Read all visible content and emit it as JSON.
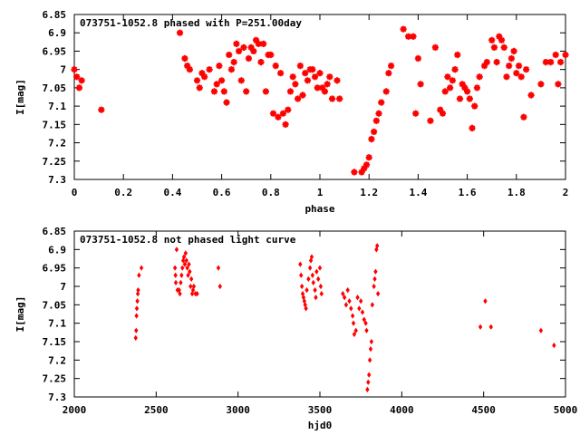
{
  "chart_data": [
    {
      "type": "scatter",
      "title": "073751-1052.8 phased with P=251.00day",
      "xlabel": "phase",
      "ylabel": "I[mag]",
      "xlim": [
        0,
        2
      ],
      "ylim": [
        6.85,
        7.3
      ],
      "y_inverted": true,
      "xticks": [
        "0",
        "0.2",
        "0.4",
        "0.6",
        "0.8",
        "1",
        "1.2",
        "1.4",
        "1.6",
        "1.8",
        "2"
      ],
      "yticks": [
        "6.85",
        "6.9",
        "6.95",
        "7",
        "7.05",
        "7.1",
        "7.15",
        "7.2",
        "7.25",
        "7.3"
      ],
      "marker": "star",
      "color": "#ff0000",
      "series": [
        {
          "points": [
            [
              0.0,
              7.0
            ],
            [
              0.01,
              7.02
            ],
            [
              0.02,
              7.05
            ],
            [
              0.03,
              7.03
            ],
            [
              0.11,
              7.11
            ],
            [
              0.43,
              6.9
            ],
            [
              0.45,
              6.97
            ],
            [
              0.46,
              6.99
            ],
            [
              0.47,
              7.0
            ],
            [
              0.5,
              7.03
            ],
            [
              0.51,
              7.05
            ],
            [
              0.52,
              7.01
            ],
            [
              0.53,
              7.02
            ],
            [
              0.55,
              7.0
            ],
            [
              0.57,
              7.06
            ],
            [
              0.58,
              7.04
            ],
            [
              0.59,
              6.99
            ],
            [
              0.6,
              7.03
            ],
            [
              0.61,
              7.06
            ],
            [
              0.62,
              7.09
            ],
            [
              0.63,
              6.96
            ],
            [
              0.64,
              7.0
            ],
            [
              0.65,
              6.98
            ],
            [
              0.66,
              6.93
            ],
            [
              0.67,
              6.95
            ],
            [
              0.68,
              7.03
            ],
            [
              0.69,
              6.94
            ],
            [
              0.7,
              7.06
            ],
            [
              0.71,
              6.97
            ],
            [
              0.72,
              6.94
            ],
            [
              0.73,
              6.95
            ],
            [
              0.74,
              6.92
            ],
            [
              0.75,
              6.93
            ],
            [
              0.76,
              6.98
            ],
            [
              0.77,
              6.93
            ],
            [
              0.78,
              7.06
            ],
            [
              0.79,
              6.96
            ],
            [
              0.8,
              6.96
            ],
            [
              0.81,
              7.12
            ],
            [
              0.82,
              6.99
            ],
            [
              0.83,
              7.13
            ],
            [
              0.84,
              7.01
            ],
            [
              0.85,
              7.12
            ],
            [
              0.86,
              7.15
            ],
            [
              0.87,
              7.11
            ],
            [
              0.88,
              7.06
            ],
            [
              0.89,
              7.02
            ],
            [
              0.9,
              7.04
            ],
            [
              0.91,
              7.08
            ],
            [
              0.92,
              6.99
            ],
            [
              0.93,
              7.07
            ],
            [
              0.94,
              7.01
            ],
            [
              0.95,
              7.03
            ],
            [
              0.96,
              7.0
            ],
            [
              0.97,
              7.0
            ],
            [
              0.98,
              7.02
            ],
            [
              0.99,
              7.05
            ],
            [
              1.0,
              7.01
            ],
            [
              1.01,
              7.05
            ],
            [
              1.02,
              7.06
            ],
            [
              1.03,
              7.04
            ],
            [
              1.04,
              7.02
            ],
            [
              1.05,
              7.08
            ],
            [
              1.07,
              7.03
            ],
            [
              1.08,
              7.08
            ],
            [
              1.14,
              7.28
            ],
            [
              1.17,
              7.28
            ],
            [
              1.18,
              7.27
            ],
            [
              1.19,
              7.26
            ],
            [
              1.2,
              7.24
            ],
            [
              1.21,
              7.19
            ],
            [
              1.22,
              7.17
            ],
            [
              1.23,
              7.14
            ],
            [
              1.24,
              7.12
            ],
            [
              1.25,
              7.09
            ],
            [
              1.27,
              7.06
            ],
            [
              1.28,
              7.01
            ],
            [
              1.29,
              6.99
            ],
            [
              1.34,
              6.89
            ],
            [
              1.36,
              6.91
            ],
            [
              1.38,
              6.91
            ],
            [
              1.39,
              7.12
            ],
            [
              1.4,
              6.97
            ],
            [
              1.41,
              7.04
            ],
            [
              1.45,
              7.14
            ],
            [
              1.47,
              6.94
            ],
            [
              1.49,
              7.11
            ],
            [
              1.5,
              7.12
            ],
            [
              1.51,
              7.06
            ],
            [
              1.52,
              7.02
            ],
            [
              1.53,
              7.05
            ],
            [
              1.54,
              7.03
            ],
            [
              1.55,
              7.0
            ],
            [
              1.56,
              6.96
            ],
            [
              1.57,
              7.08
            ],
            [
              1.58,
              7.04
            ],
            [
              1.59,
              7.05
            ],
            [
              1.6,
              7.06
            ],
            [
              1.61,
              7.08
            ],
            [
              1.62,
              7.16
            ],
            [
              1.63,
              7.1
            ],
            [
              1.64,
              7.05
            ],
            [
              1.65,
              7.02
            ],
            [
              1.67,
              6.99
            ],
            [
              1.68,
              6.98
            ],
            [
              1.7,
              6.92
            ],
            [
              1.71,
              6.94
            ],
            [
              1.72,
              6.98
            ],
            [
              1.73,
              6.91
            ],
            [
              1.74,
              6.92
            ],
            [
              1.75,
              6.94
            ],
            [
              1.76,
              7.02
            ],
            [
              1.77,
              6.99
            ],
            [
              1.78,
              6.97
            ],
            [
              1.79,
              6.95
            ],
            [
              1.8,
              7.01
            ],
            [
              1.81,
              6.99
            ],
            [
              1.82,
              7.02
            ],
            [
              1.83,
              7.13
            ],
            [
              1.84,
              7.0
            ],
            [
              1.86,
              7.07
            ],
            [
              1.9,
              7.04
            ],
            [
              1.92,
              6.98
            ],
            [
              1.94,
              6.98
            ],
            [
              1.96,
              6.96
            ],
            [
              1.97,
              7.04
            ],
            [
              1.98,
              6.98
            ],
            [
              2.0,
              6.96
            ]
          ]
        }
      ]
    },
    {
      "type": "scatter",
      "title": "073751-1052.8 not phased light curve",
      "xlabel": "hjd0",
      "ylabel": "I[mag]",
      "xlim": [
        2000,
        5000
      ],
      "ylim": [
        6.85,
        7.3
      ],
      "y_inverted": true,
      "xticks": [
        "2000",
        "2500",
        "3000",
        "3500",
        "4000",
        "4500",
        "5000"
      ],
      "yticks": [
        "6.85",
        "6.9",
        "6.95",
        "7",
        "7.05",
        "7.1",
        "7.15",
        "7.2",
        "7.25",
        "7.3"
      ],
      "marker": "diamond",
      "color": "#ff0000",
      "series": [
        {
          "points": [
            [
              2375,
              7.14
            ],
            [
              2378,
              7.12
            ],
            [
              2380,
              7.08
            ],
            [
              2382,
              7.06
            ],
            [
              2385,
              7.04
            ],
            [
              2388,
              7.02
            ],
            [
              2390,
              7.01
            ],
            [
              2395,
              6.97
            ],
            [
              2410,
              6.95
            ],
            [
              2615,
              6.95
            ],
            [
              2618,
              6.97
            ],
            [
              2620,
              6.99
            ],
            [
              2625,
              6.9
            ],
            [
              2630,
              7.01
            ],
            [
              2640,
              7.01
            ],
            [
              2645,
              7.02
            ],
            [
              2650,
              6.99
            ],
            [
              2655,
              6.97
            ],
            [
              2660,
              6.95
            ],
            [
              2665,
              6.93
            ],
            [
              2670,
              6.92
            ],
            [
              2675,
              6.94
            ],
            [
              2680,
              6.91
            ],
            [
              2685,
              6.93
            ],
            [
              2690,
              6.95
            ],
            [
              2695,
              6.97
            ],
            [
              2700,
              6.94
            ],
            [
              2705,
              6.96
            ],
            [
              2710,
              7.0
            ],
            [
              2715,
              6.98
            ],
            [
              2720,
              7.02
            ],
            [
              2725,
              7.01
            ],
            [
              2730,
              7.0
            ],
            [
              2740,
              7.02
            ],
            [
              2750,
              7.02
            ],
            [
              2880,
              6.95
            ],
            [
              2890,
              7.0
            ],
            [
              3380,
              6.94
            ],
            [
              3385,
              6.97
            ],
            [
              3390,
              7.0
            ],
            [
              3395,
              7.02
            ],
            [
              3400,
              7.03
            ],
            [
              3405,
              7.04
            ],
            [
              3410,
              7.05
            ],
            [
              3415,
              7.06
            ],
            [
              3420,
              7.01
            ],
            [
              3430,
              6.98
            ],
            [
              3440,
              6.95
            ],
            [
              3445,
              6.93
            ],
            [
              3450,
              6.92
            ],
            [
              3455,
              6.97
            ],
            [
              3460,
              6.99
            ],
            [
              3470,
              7.01
            ],
            [
              3475,
              7.03
            ],
            [
              3480,
              6.96
            ],
            [
              3490,
              6.98
            ],
            [
              3500,
              6.95
            ],
            [
              3505,
              7.0
            ],
            [
              3510,
              7.02
            ],
            [
              3640,
              7.02
            ],
            [
              3650,
              7.03
            ],
            [
              3660,
              7.05
            ],
            [
              3670,
              7.01
            ],
            [
              3680,
              7.04
            ],
            [
              3690,
              7.06
            ],
            [
              3700,
              7.08
            ],
            [
              3705,
              7.1
            ],
            [
              3710,
              7.13
            ],
            [
              3720,
              7.12
            ],
            [
              3730,
              7.03
            ],
            [
              3740,
              7.06
            ],
            [
              3750,
              7.04
            ],
            [
              3760,
              7.07
            ],
            [
              3770,
              7.09
            ],
            [
              3780,
              7.1
            ],
            [
              3785,
              7.12
            ],
            [
              3790,
              7.28
            ],
            [
              3795,
              7.26
            ],
            [
              3800,
              7.24
            ],
            [
              3805,
              7.2
            ],
            [
              3810,
              7.17
            ],
            [
              3815,
              7.15
            ],
            [
              3820,
              7.05
            ],
            [
              3830,
              7.0
            ],
            [
              3835,
              6.98
            ],
            [
              3840,
              6.96
            ],
            [
              3845,
              6.9
            ],
            [
              3850,
              6.89
            ],
            [
              3855,
              7.02
            ],
            [
              4480,
              7.11
            ],
            [
              4510,
              7.04
            ],
            [
              4545,
              7.11
            ],
            [
              4850,
              7.12
            ],
            [
              4930,
              7.16
            ]
          ]
        }
      ]
    }
  ]
}
